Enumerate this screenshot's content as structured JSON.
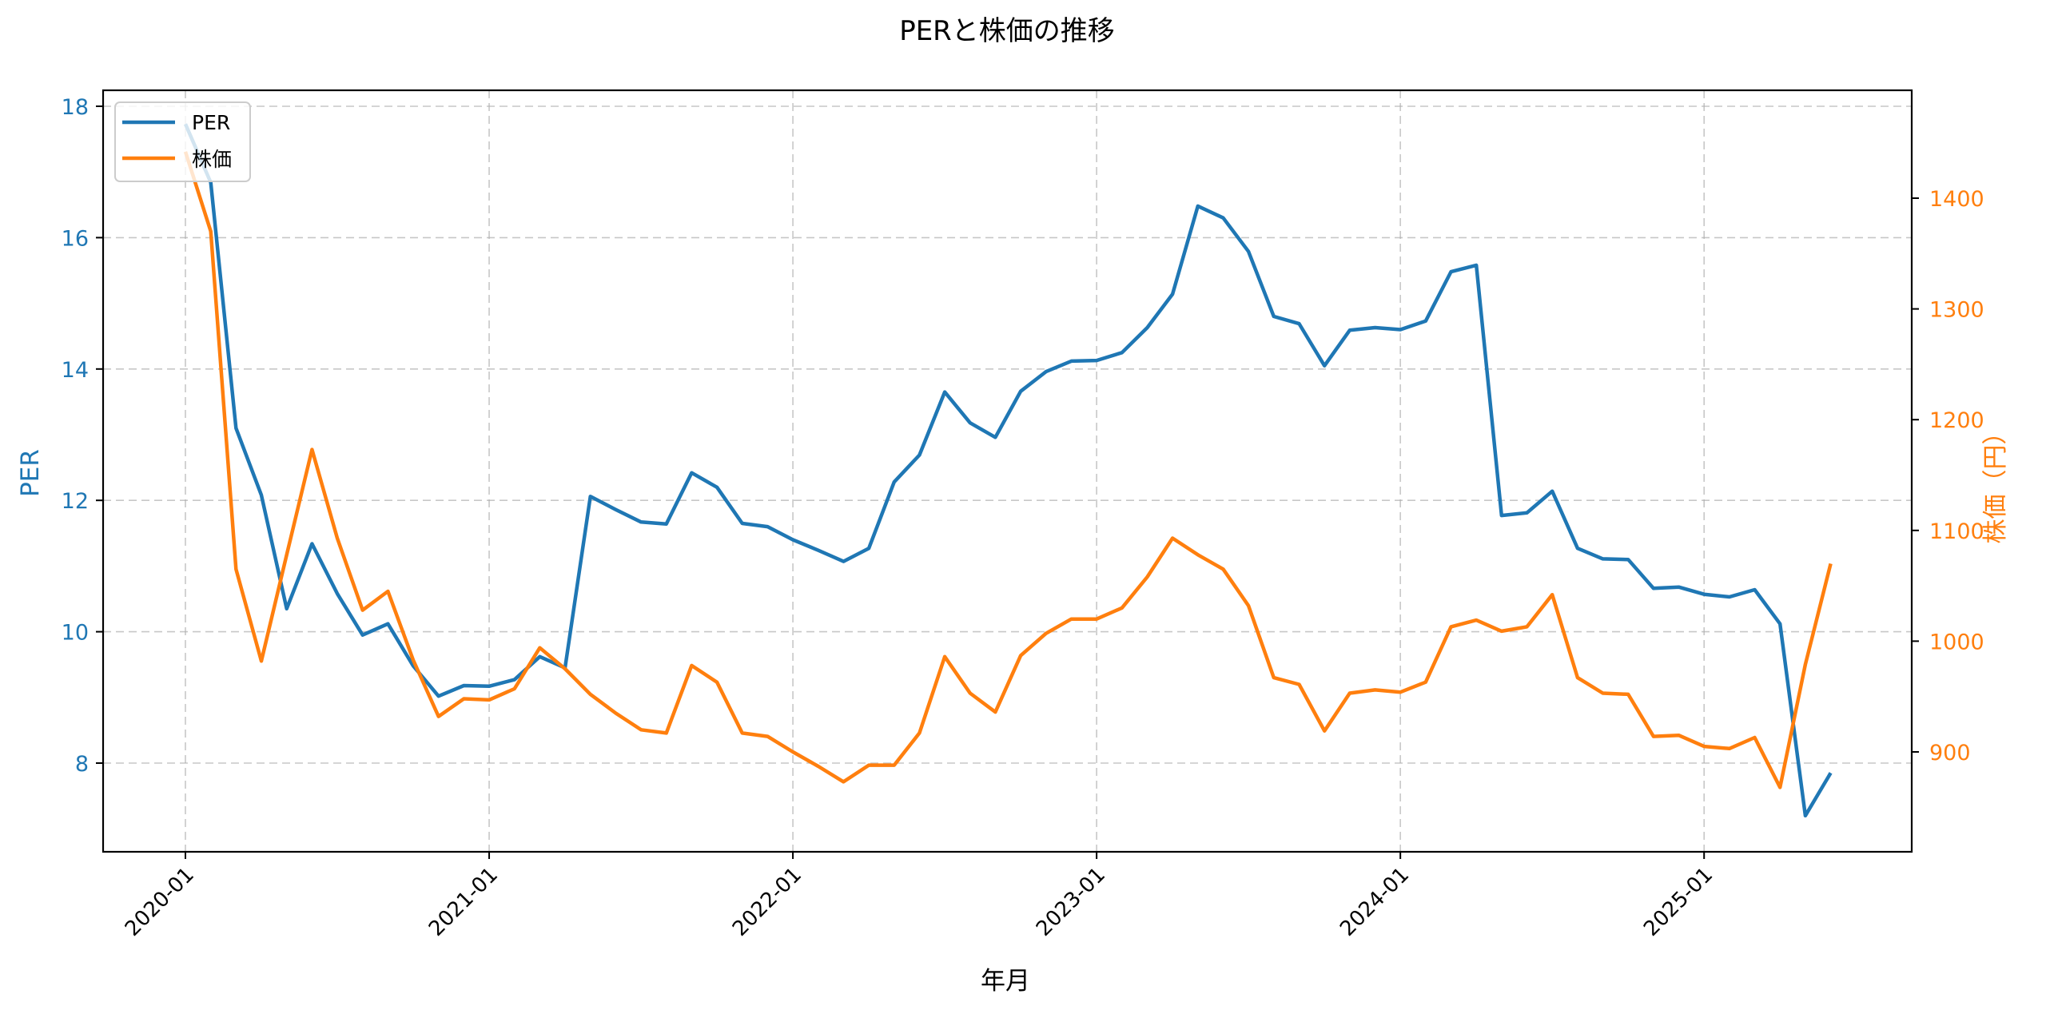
{
  "chart_data": {
    "type": "line",
    "title": "PERと株価の推移",
    "xlabel": "年月",
    "ylabel": "PER",
    "ylabel_right": "株価（円）",
    "x_start": "2020-01",
    "x": [
      "2020-01",
      "2020-02",
      "2020-03",
      "2020-04",
      "2020-05",
      "2020-06",
      "2020-07",
      "2020-08",
      "2020-09",
      "2020-10",
      "2020-11",
      "2020-12",
      "2021-01",
      "2021-02",
      "2021-03",
      "2021-04",
      "2021-05",
      "2021-06",
      "2021-07",
      "2021-08",
      "2021-09",
      "2021-10",
      "2021-11",
      "2021-12",
      "2022-01",
      "2022-02",
      "2022-03",
      "2022-04",
      "2022-05",
      "2022-06",
      "2022-07",
      "2022-08",
      "2022-09",
      "2022-10",
      "2022-11",
      "2022-12",
      "2023-01",
      "2023-02",
      "2023-03",
      "2023-04",
      "2023-05",
      "2023-06",
      "2023-07",
      "2023-08",
      "2023-09",
      "2023-10",
      "2023-11",
      "2023-12",
      "2024-01",
      "2024-02",
      "2024-03",
      "2024-04",
      "2024-05",
      "2024-06",
      "2024-07",
      "2024-08",
      "2024-09",
      "2024-10",
      "2024-11",
      "2024-12",
      "2025-01",
      "2025-02",
      "2025-03",
      "2025-04",
      "2025-05",
      "2025-06"
    ],
    "xticks": [
      "2020-01",
      "2021-01",
      "2022-01",
      "2023-01",
      "2024-01",
      "2025-01"
    ],
    "ylim": [
      6.7,
      18.4
    ],
    "yticks": [
      8,
      10,
      12,
      14,
      16,
      18
    ],
    "ylim_right": [
      814,
      1502
    ],
    "yticks_right": [
      900,
      1000,
      1100,
      1200,
      1300,
      1400
    ],
    "grid": true,
    "legend_position": "upper left",
    "series": [
      {
        "name": "PER",
        "axis": "left",
        "color": "#1f77b4",
        "values": [
          17.73,
          16.84,
          13.1,
          12.08,
          10.35,
          11.34,
          10.58,
          9.95,
          10.12,
          9.48,
          9.02,
          9.18,
          9.17,
          9.27,
          9.62,
          9.45,
          12.06,
          11.86,
          11.67,
          11.64,
          12.42,
          12.2,
          11.65,
          11.6,
          11.4,
          11.24,
          11.07,
          11.27,
          12.28,
          12.69,
          13.65,
          13.18,
          12.96,
          13.66,
          13.96,
          14.12,
          14.13,
          14.25,
          14.63,
          15.14,
          16.48,
          16.3,
          15.79,
          14.8,
          14.69,
          14.05,
          14.59,
          14.63,
          14.6,
          14.73,
          15.48,
          15.58,
          11.77,
          11.81,
          12.14,
          11.27,
          11.11,
          11.1,
          10.66,
          10.68,
          10.57,
          10.53,
          10.64,
          10.12,
          7.2,
          7.85
        ]
      },
      {
        "name": "株価",
        "axis": "right",
        "color": "#ff7f0e",
        "values": [
          1442,
          1370,
          1065,
          982,
          1078,
          1173,
          1093,
          1028,
          1045,
          983,
          932,
          948,
          947,
          957,
          994,
          975,
          952,
          935,
          920,
          917,
          978,
          963,
          917,
          914,
          900,
          887,
          873,
          888,
          888,
          917,
          986,
          953,
          936,
          987,
          1007,
          1020,
          1020,
          1030,
          1058,
          1093,
          1078,
          1065,
          1032,
          967,
          961,
          919,
          953,
          956,
          954,
          963,
          1013,
          1019,
          1009,
          1013,
          1042,
          967,
          953,
          952,
          914,
          915,
          905,
          903,
          913,
          868,
          979,
          1070
        ]
      }
    ]
  },
  "colors": {
    "per": "#1f77b4",
    "price": "#ff7f0e"
  }
}
